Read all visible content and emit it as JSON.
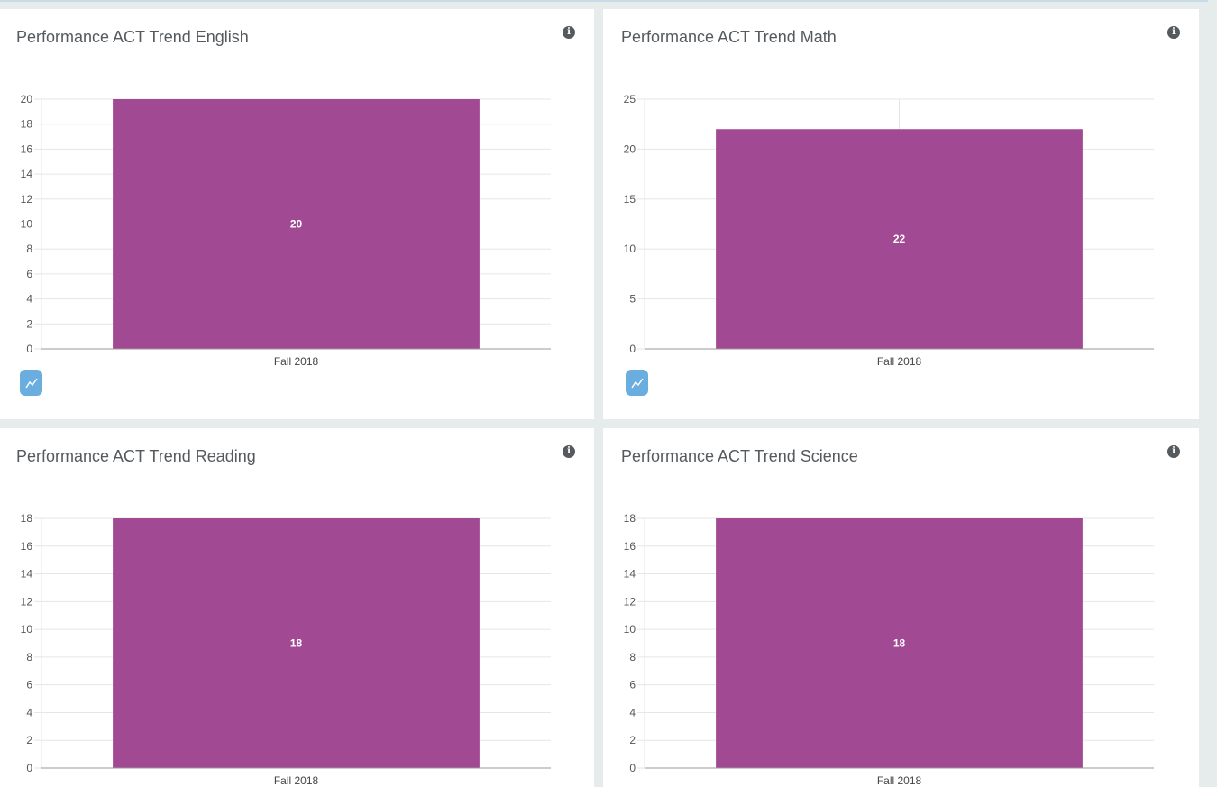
{
  "colors": {
    "bar": "#a14a93",
    "grid": "#e6e6e6",
    "axis": "#999999",
    "trend_button": "#6aaee0",
    "info_icon": "#555a5e"
  },
  "icons": {
    "info": "i",
    "trend": "line-chart-icon"
  },
  "chart_data": [
    {
      "type": "bar",
      "title": "Performance ACT Trend English",
      "categories": [
        "Fall 2018"
      ],
      "values": [
        20
      ],
      "data_labels": [
        "20"
      ],
      "ylim": [
        0,
        20
      ],
      "yticks": [
        0,
        2,
        4,
        6,
        8,
        10,
        12,
        14,
        16,
        18,
        20
      ],
      "grid": true,
      "show_trend_button": true
    },
    {
      "type": "bar",
      "title": "Performance ACT Trend Math",
      "categories": [
        "Fall 2018"
      ],
      "values": [
        22
      ],
      "data_labels": [
        "22"
      ],
      "ylim": [
        0,
        25
      ],
      "yticks": [
        0,
        5,
        10,
        15,
        20,
        25
      ],
      "grid": true,
      "show_trend_button": true
    },
    {
      "type": "bar",
      "title": "Performance ACT Trend Reading",
      "categories": [
        "Fall 2018"
      ],
      "values": [
        18
      ],
      "data_labels": [
        "18"
      ],
      "ylim": [
        0,
        18
      ],
      "yticks": [
        0,
        2,
        4,
        6,
        8,
        10,
        12,
        14,
        16,
        18
      ],
      "grid": true,
      "show_trend_button": false
    },
    {
      "type": "bar",
      "title": "Performance ACT Trend Science",
      "categories": [
        "Fall 2018"
      ],
      "values": [
        18
      ],
      "data_labels": [
        "18"
      ],
      "ylim": [
        0,
        18
      ],
      "yticks": [
        0,
        2,
        4,
        6,
        8,
        10,
        12,
        14,
        16,
        18
      ],
      "grid": true,
      "show_trend_button": false
    }
  ]
}
